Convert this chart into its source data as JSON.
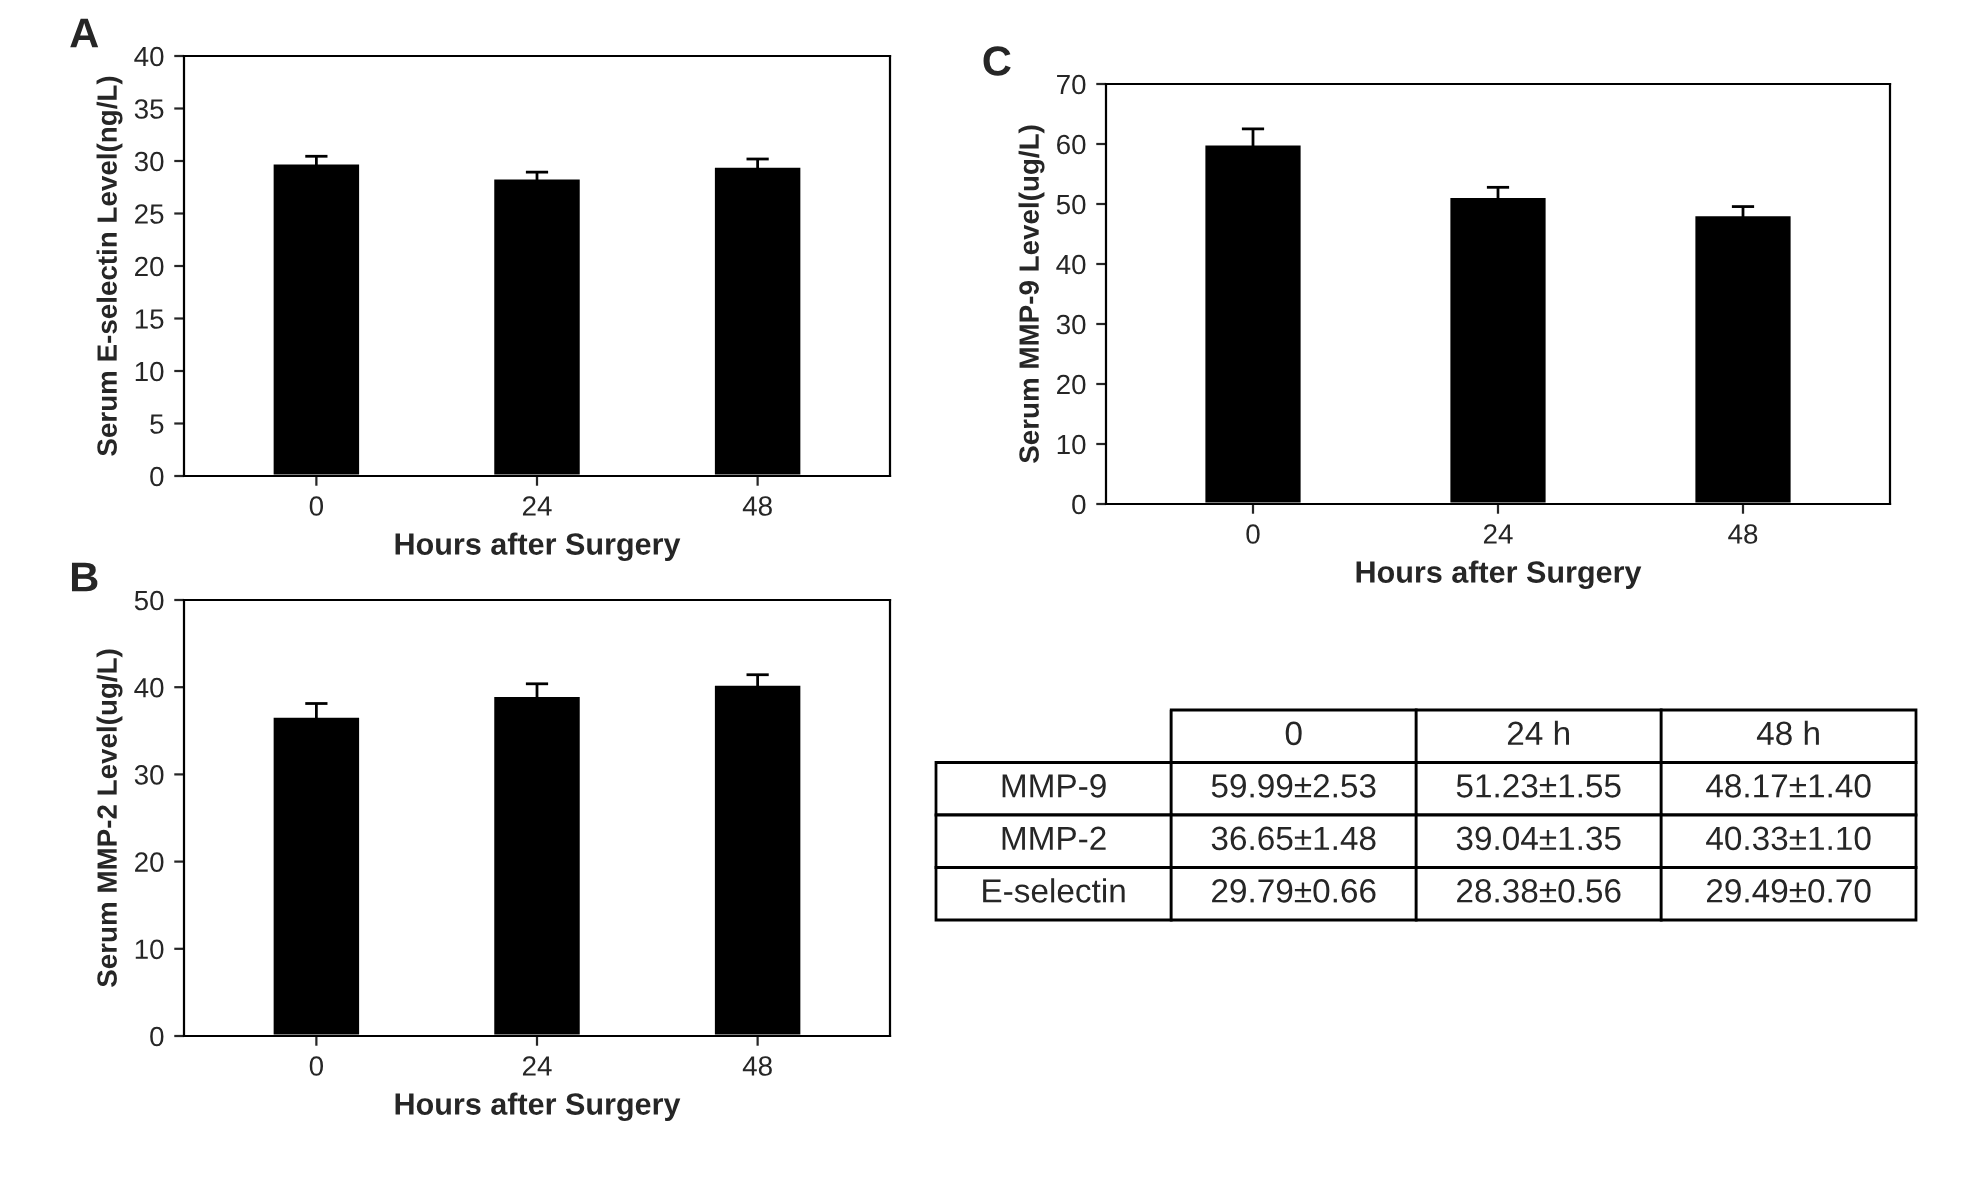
{
  "chart_data": [
    {
      "type": "bar",
      "title": "A",
      "xlabel": "Hours after Surgery",
      "ylabel": "Serum E-selectin Level(ng/L)",
      "categories": [
        "0",
        "24",
        "48"
      ],
      "values": [
        29.79,
        28.38,
        29.49
      ],
      "errors": [
        0.66,
        0.56,
        0.7
      ],
      "color": "#000000",
      "ylim": [
        0,
        40
      ],
      "yticks": [
        0,
        5,
        10,
        15,
        20,
        25,
        30,
        35,
        40
      ]
    },
    {
      "type": "bar",
      "title": "C",
      "xlabel": "Hours after Surgery",
      "ylabel": "Serum MMP-9 Level(ug/L)",
      "categories": [
        "0",
        "24",
        "48"
      ],
      "values": [
        59.99,
        51.23,
        48.17
      ],
      "errors": [
        2.53,
        1.55,
        1.4
      ],
      "color": "#000000",
      "ylim": [
        0,
        70
      ],
      "yticks": [
        0,
        10,
        20,
        30,
        40,
        50,
        60,
        70
      ]
    },
    {
      "type": "bar",
      "title": "B",
      "xlabel": "Hours after Surgery",
      "ylabel": "Serum MMP-2 Level(ug/L)",
      "categories": [
        "0",
        "24",
        "48"
      ],
      "values": [
        36.65,
        39.04,
        40.33
      ],
      "errors": [
        1.48,
        1.35,
        1.1
      ],
      "color": "#000000",
      "ylim": [
        0,
        50
      ],
      "yticks": [
        0,
        10,
        20,
        30,
        40,
        50
      ]
    },
    {
      "type": "other",
      "categories": [
        "0",
        "24 h",
        "48 h"
      ],
      "y_categories": [
        "MMP-9",
        "MMP-2",
        "E-selectin"
      ],
      "cell_labels": [
        [
          "59.99±2.53",
          "51.23±1.55",
          "48.17±1.40"
        ],
        [
          "36.65±1.48",
          "39.04±1.35",
          "40.33±1.10"
        ],
        [
          "29.79±0.66",
          "28.38±0.56",
          "29.49±0.70"
        ]
      ]
    }
  ]
}
